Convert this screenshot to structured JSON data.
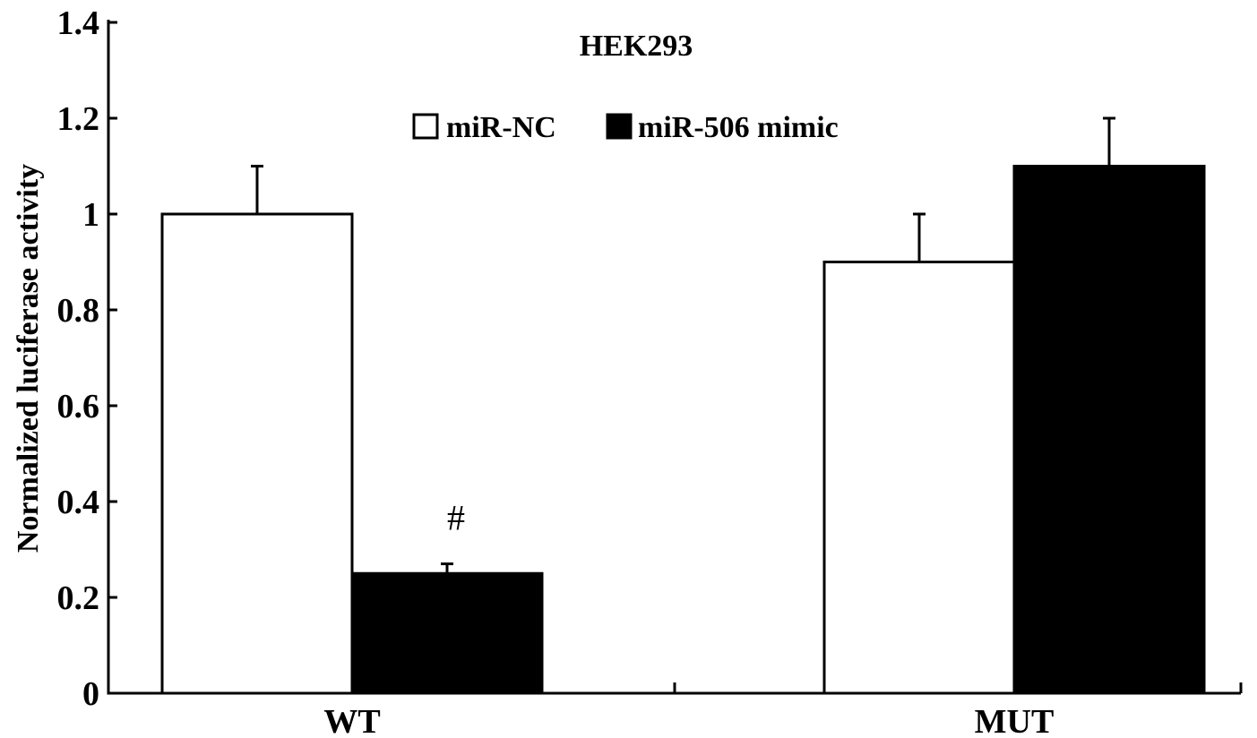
{
  "chart_data": {
    "type": "bar",
    "title": "HEK293",
    "xlabel": "",
    "ylabel": "Normalized luciferase activity",
    "categories": [
      "WT",
      "MUT"
    ],
    "series": [
      {
        "name": "miR-NC",
        "values": [
          1.0,
          0.9
        ],
        "errors": [
          0.1,
          0.1
        ],
        "color": "#ffffff"
      },
      {
        "name": "miR-506 mimic",
        "values": [
          0.25,
          1.1
        ],
        "errors": [
          0.02,
          0.1
        ],
        "color": "#000000"
      }
    ],
    "ylim": [
      0,
      1.4
    ],
    "yticks": [
      "0",
      "0.2",
      "0.4",
      "0.6",
      "0.8",
      "1",
      "1.2",
      "1.4"
    ],
    "annotations": [
      {
        "text": "#",
        "category": "WT",
        "series": "miR-506 mimic"
      }
    ],
    "legend_position": "top-center",
    "grid": false
  }
}
